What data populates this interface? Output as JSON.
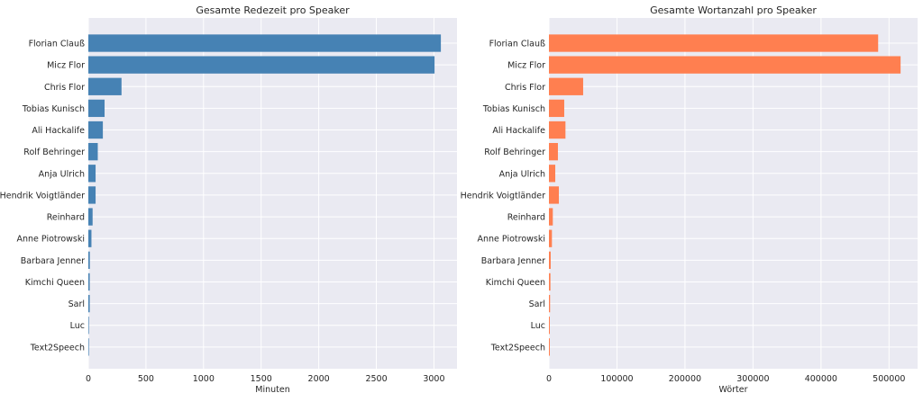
{
  "chart_data": [
    {
      "type": "bar",
      "orientation": "horizontal",
      "title": "Gesamte Redezeit pro Speaker",
      "xlabel": "Minuten",
      "ylabel": "",
      "xlim": [
        0,
        3200
      ],
      "xticks": [
        0,
        500,
        1000,
        1500,
        2000,
        2500,
        3000
      ],
      "grid": true,
      "color": "#4682b4",
      "categories": [
        "Florian Clauß",
        "Micz Flor",
        "Chris Flor",
        "Tobias Kunisch",
        "Ali Hackalife",
        "Rolf Behringer",
        "Anja Ulrich",
        "Hendrik Voigtländer",
        "Reinhard",
        "Anne Piotrowski",
        "Barbara Jenner",
        "Kimchi Queen",
        "Sarl",
        "Luc",
        "Text2Speech"
      ],
      "values": [
        3060,
        3005,
        288,
        141,
        126,
        82,
        63,
        63,
        37,
        27,
        13,
        12,
        12,
        5,
        5
      ]
    },
    {
      "type": "bar",
      "orientation": "horizontal",
      "title": "Gesamte Wortanzahl pro Speaker",
      "xlabel": "Wörter",
      "ylabel": "",
      "xlim": [
        0,
        542000
      ],
      "xticks": [
        0,
        100000,
        200000,
        300000,
        400000,
        500000
      ],
      "grid": true,
      "color": "#ff7f50",
      "categories": [
        "Florian Clauß",
        "Micz Flor",
        "Chris Flor",
        "Tobias Kunisch",
        "Ali Hackalife",
        "Rolf Behringer",
        "Anja Ulrich",
        "Hendrik Voigtländer",
        "Reinhard",
        "Anne Piotrowski",
        "Barbara Jenner",
        "Kimchi Queen",
        "Sarl",
        "Luc",
        "Text2Speech"
      ],
      "values": [
        484000,
        517000,
        50300,
        22500,
        24300,
        13200,
        9300,
        14600,
        5700,
        4400,
        2600,
        2200,
        1700,
        1300,
        1300
      ]
    }
  ]
}
